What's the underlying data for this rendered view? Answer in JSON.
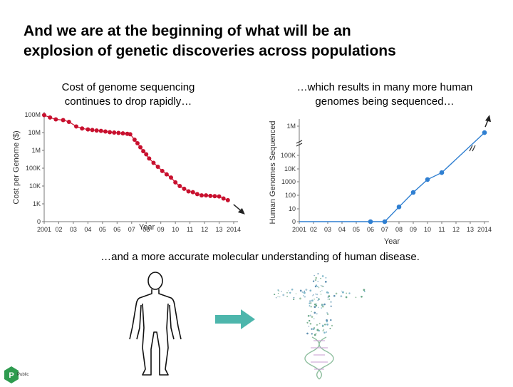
{
  "slide": {
    "title_line1": "And we are at the beginning of what will be an",
    "title_line2": "explosion of genetic discoveries across populations",
    "caption_left_line1": "Cost of genome sequencing",
    "caption_left_line2": "continues to drop rapidly…",
    "caption_right_line1": "…which results in many more human",
    "caption_right_line2": "genomes being sequenced…",
    "caption_bottom": "…and a more accurate molecular understanding of human disease.",
    "logo_text": "Public"
  },
  "colors": {
    "cost_series": "#c8102e",
    "genomes_series": "#2f7fd1",
    "arrow": "#4db6ac",
    "axis": "#777777"
  },
  "icons": [
    "human-outline-icon",
    "right-arrow-icon",
    "molecular-human-dna-icon",
    "logo-icon"
  ],
  "chart_data": [
    {
      "type": "scatter",
      "title": "",
      "xlabel": "Year",
      "ylabel": "Cost per Genome ($)",
      "y_scale": "log",
      "x_ticks": [
        "2001",
        "02",
        "03",
        "04",
        "05",
        "06",
        "07",
        "08",
        "09",
        "10",
        "11",
        "12",
        "13",
        "2014"
      ],
      "y_ticks": [
        "0",
        "1K",
        "10K",
        "100K",
        "1M",
        "10M",
        "100M"
      ],
      "ylim": [
        1,
        100000000
      ],
      "x": [
        2001.0,
        2001.4,
        2001.8,
        2002.3,
        2002.7,
        2003.2,
        2003.6,
        2004.0,
        2004.3,
        2004.6,
        2004.9,
        2005.2,
        2005.5,
        2005.8,
        2006.1,
        2006.4,
        2006.7,
        2006.9,
        2007.2,
        2007.4,
        2007.6,
        2007.8,
        2008.0,
        2008.2,
        2008.5,
        2008.8,
        2009.1,
        2009.4,
        2009.7,
        2010.0,
        2010.3,
        2010.6,
        2010.9,
        2011.2,
        2011.5,
        2011.8,
        2012.1,
        2012.4,
        2012.7,
        2013.0,
        2013.3,
        2013.6
      ],
      "values": [
        95000000,
        70000000,
        55000000,
        50000000,
        40000000,
        22000000,
        17000000,
        15000000,
        14000000,
        13000000,
        12500000,
        11500000,
        10500000,
        10000000,
        9500000,
        9000000,
        8500000,
        8000000,
        4000000,
        2500000,
        1500000,
        900000,
        600000,
        350000,
        200000,
        120000,
        70000,
        45000,
        30000,
        16000,
        10000,
        7000,
        5000,
        4500,
        3500,
        3000,
        3000,
        2800,
        2700,
        2600,
        2000,
        1600
      ],
      "annotations": [
        "downward-arrow"
      ]
    },
    {
      "type": "line",
      "title": "",
      "xlabel": "Year",
      "ylabel": "Human Genomes Sequenced",
      "y_scale": "log",
      "x_ticks": [
        "2001",
        "02",
        "03",
        "04",
        "05",
        "06",
        "07",
        "08",
        "09",
        "10",
        "11",
        "12",
        "13",
        "2014"
      ],
      "y_ticks": [
        "0",
        "10",
        "100",
        "1000",
        "10K",
        "100K",
        "1M"
      ],
      "x": [
        2001,
        2006,
        2007,
        2008,
        2009,
        2010,
        2011,
        2014
      ],
      "values": [
        1,
        1,
        1,
        13,
        160,
        1500,
        5000,
        600000
      ],
      "markers_from_index": 1,
      "axis_break": true,
      "annotations": [
        "upward-arrow"
      ]
    }
  ]
}
